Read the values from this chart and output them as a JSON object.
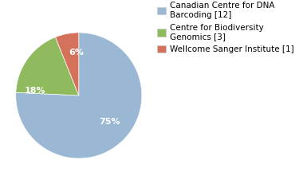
{
  "slices": [
    75,
    18,
    6
  ],
  "labels": [
    "75%",
    "18%",
    "6%"
  ],
  "colors": [
    "#9ab7d3",
    "#8fba5e",
    "#d4715a"
  ],
  "legend_labels": [
    "Canadian Centre for DNA\nBarcoding [12]",
    "Centre for Biodiversity\nGenomics [3]",
    "Wellcome Sanger Institute [1]"
  ],
  "startangle": 90,
  "label_fontsize": 8,
  "legend_fontsize": 7.5,
  "background_color": "#ffffff"
}
